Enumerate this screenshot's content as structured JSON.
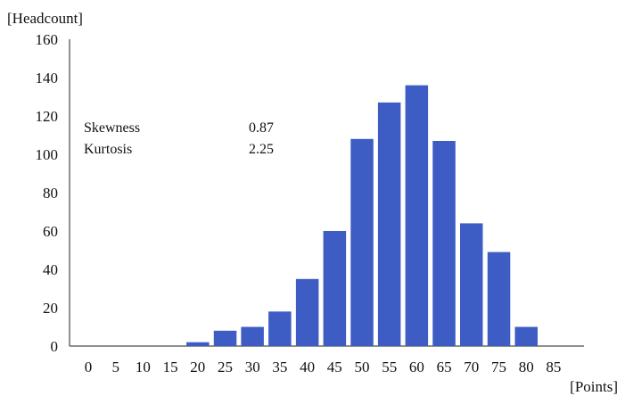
{
  "chart_data": {
    "type": "bar",
    "title": "",
    "ylabel": "[Headcount]",
    "xlabel": "[Points]",
    "ylim": [
      0,
      160
    ],
    "yticks": [
      "0",
      "20",
      "40",
      "60",
      "80",
      "100",
      "120",
      "140",
      "160"
    ],
    "xticks": [
      "0",
      "5",
      "10",
      "15",
      "20",
      "25",
      "30",
      "35",
      "40",
      "45",
      "50",
      "55",
      "60",
      "65",
      "70",
      "75",
      "80",
      "85"
    ],
    "categories": [
      "20",
      "25",
      "30",
      "35",
      "40",
      "45",
      "50",
      "55",
      "60",
      "65",
      "70",
      "75",
      "80"
    ],
    "values": [
      2,
      8,
      10,
      18,
      35,
      60,
      108,
      127,
      136,
      107,
      64,
      49,
      10
    ],
    "bar_color": "#3d5cc4",
    "grid": false,
    "stats": [
      {
        "label": "Skewness",
        "value": "0.87"
      },
      {
        "label": "Kurtosis",
        "value": "2.25"
      }
    ]
  }
}
